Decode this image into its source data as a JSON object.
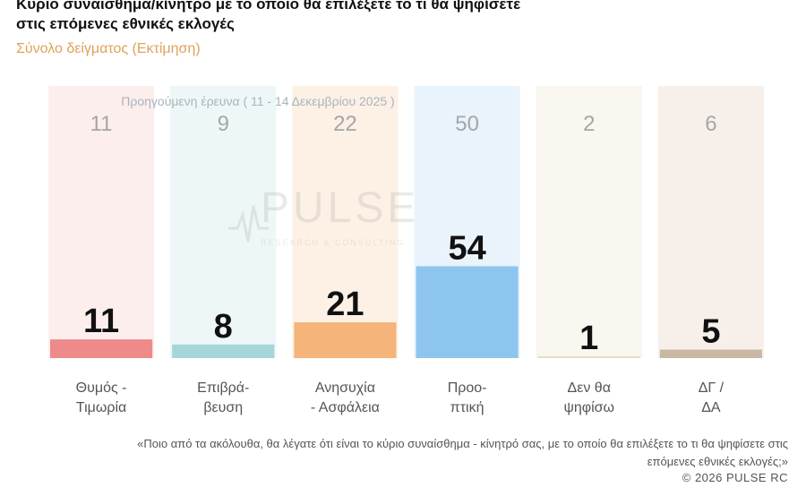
{
  "chart_data": {
    "type": "bar",
    "title": "Κυριο συναισθημα/κίνητρο με το οποιο θα επιλέξετε το τι θα ψηφίσετε στις επόμενες εθνικές εκλογές",
    "subtitle": "Σύνολο δείγματος (Εκτίμηση)",
    "previous_survey_label": "Προηγούμενη έρευνα ( 11 - 14 Δεκεμβρίου 2025 )",
    "categories": [
      [
        "Θυμός -",
        "Τιμωρία"
      ],
      [
        "Επιβρά-",
        "βευση"
      ],
      [
        "Ανησυχία",
        "- Ασφάλεια"
      ],
      [
        "Προο-",
        "πτική"
      ],
      [
        "Δεν θα",
        "ψηφίσω"
      ],
      [
        "ΔΓ /",
        "ΔΑ"
      ]
    ],
    "series": [
      {
        "values": [
          11,
          8,
          21,
          54,
          1,
          5
        ]
      },
      {
        "values": [
          11,
          9,
          22,
          50,
          2,
          6
        ]
      }
    ],
    "bar_colors": [
      "#ef8a8a",
      "#a6d6d8",
      "#f4b47a",
      "#8ec5ee",
      "#e8dccb",
      "#c9b8a4"
    ],
    "bg_colors": [
      "#fdeeee",
      "#eef7f7",
      "#fdf1e6",
      "#e9f3fc",
      "#faf6f0",
      "#f7f0ea"
    ],
    "ylim": [
      0,
      100
    ]
  },
  "watermark": {
    "name": "PULSE",
    "tagline": "RESEARCH & CONSULTING"
  },
  "footnote": "«Ποιο από τα ακόλουθα, θα λέγατε ότι είναι το κύριο συναίσθημα - κίνητρό σας, με το οποίο θα επιλέξετε το τι θα ψηφίσετε στις επόμενες εθνικές εκλογές;»",
  "copyright": "© 2026 PULSE RC"
}
